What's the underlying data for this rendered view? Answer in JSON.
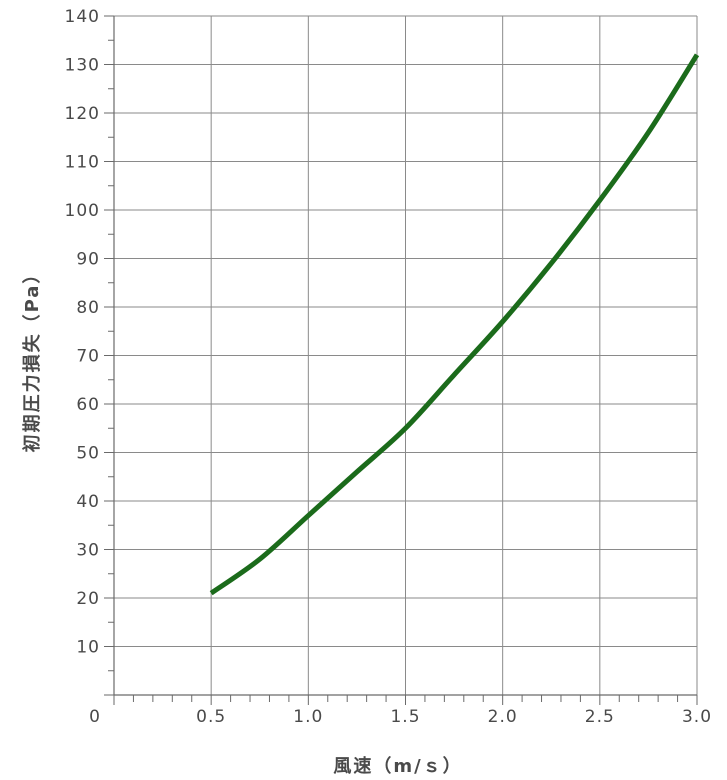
{
  "chart_data": {
    "type": "line",
    "title": "",
    "xlabel": "風速（m/ｓ）",
    "ylabel": "初期圧力損失（Pa）",
    "xlim": [
      0,
      3.0
    ],
    "ylim": [
      0,
      140
    ],
    "x_major_ticks": [
      0.5,
      1.0,
      1.5,
      2.0,
      2.5,
      3.0
    ],
    "x_minor_step": 0.1,
    "y_major_ticks": [
      10,
      20,
      30,
      40,
      50,
      60,
      70,
      80,
      90,
      100,
      110,
      120,
      130,
      140
    ],
    "y_minor_step": 5,
    "x_tick_labels": [
      "0",
      "0.5",
      "1.0",
      "1.5",
      "2.0",
      "2.5",
      "3.0"
    ],
    "y_tick_labels": [
      "10",
      "20",
      "30",
      "40",
      "50",
      "60",
      "70",
      "80",
      "90",
      "100",
      "110",
      "120",
      "130",
      "140"
    ],
    "grid": true,
    "legend": "none",
    "series": [
      {
        "color": "#1b6b1b",
        "x": [
          0.5,
          0.75,
          1.0,
          1.25,
          1.5,
          1.75,
          2.0,
          2.25,
          2.5,
          2.75,
          3.0
        ],
        "values": [
          21,
          28,
          37,
          46,
          55,
          66,
          77,
          89,
          102,
          116,
          132
        ]
      }
    ]
  }
}
